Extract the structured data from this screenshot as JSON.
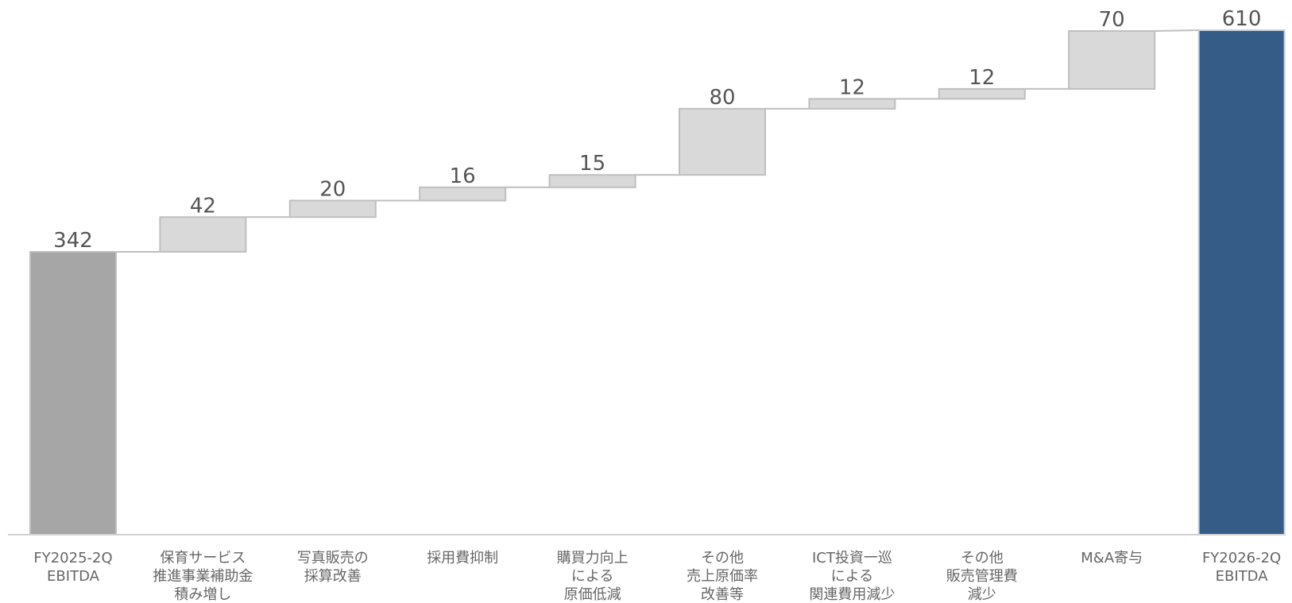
{
  "chart_data": {
    "type": "waterfall",
    "categories": [
      [
        "FY2025-2Q",
        "EBITDA"
      ],
      [
        "保育サービス",
        "推進事業補助金",
        "積み増し"
      ],
      [
        "写真販売の",
        "採算改善"
      ],
      [
        "採用費抑制"
      ],
      [
        "購買力向上",
        "による",
        "原価低減"
      ],
      [
        "その他",
        "売上原価率",
        "改善等"
      ],
      [
        "ICT投資一巡",
        "による",
        "関連費用減少"
      ],
      [
        "その他",
        "販売管理費",
        "減少"
      ],
      [
        "M&A寄与"
      ],
      [
        "FY2026-2Q",
        "EBITDA"
      ]
    ],
    "values": [
      342,
      42,
      20,
      16,
      15,
      80,
      12,
      12,
      70,
      610
    ],
    "kinds": [
      "total",
      "delta",
      "delta",
      "delta",
      "delta",
      "delta",
      "delta",
      "delta",
      "delta",
      "total"
    ],
    "ylim": [
      0,
      660
    ],
    "colors": {
      "start_total": "#a6a6a6",
      "end_total": "#355c87",
      "delta": "#d9d9d9",
      "outline": "#bfbfbf"
    }
  }
}
